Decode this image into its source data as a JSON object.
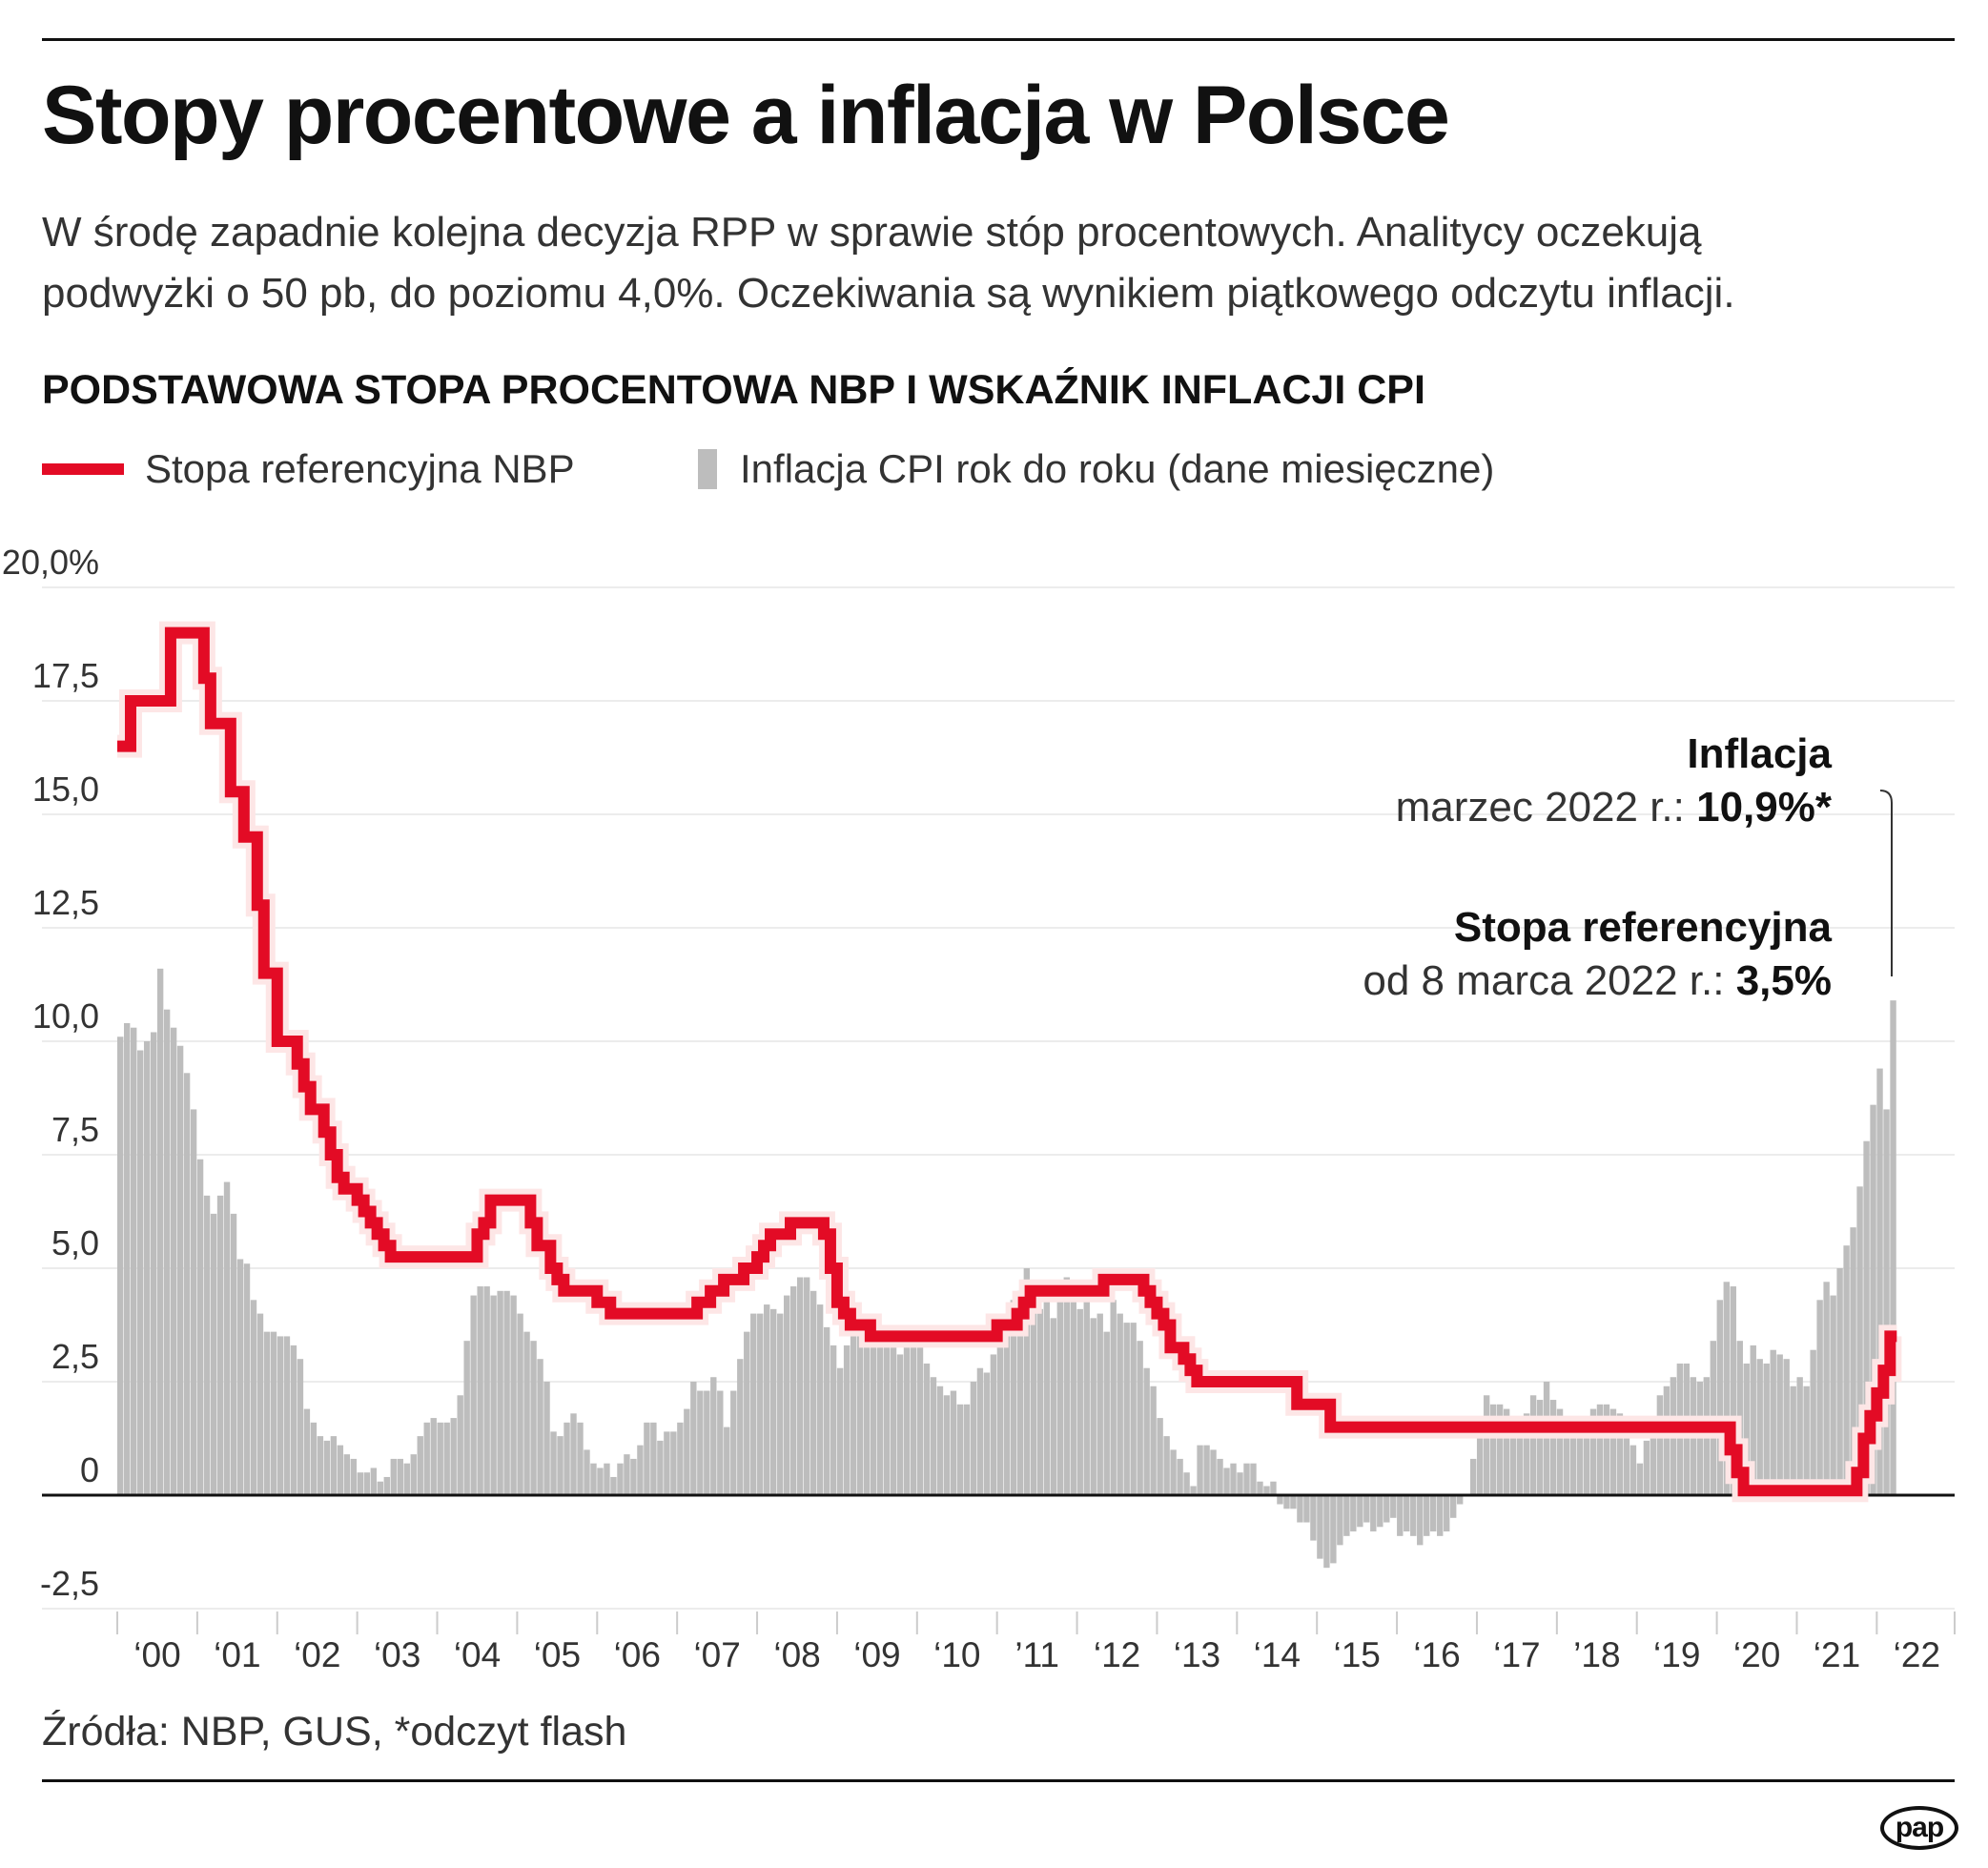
{
  "header": {
    "title": "Stopy procentowe a inflacja w Polsce",
    "subtitle_lines": [
      "W środę zapadnie kolejna decyzja RPP w sprawie stóp procentowych. Analitycy oczekują",
      "podwyżki o 50 pb, do poziomu 4,0%. Oczekiwania są wynikiem piątkowego odczytu inflacji."
    ],
    "chart_heading": "PODSTAWOWA STOPA PROCENTOWA NBP I WSKAŹNIK INFLACJI CPI"
  },
  "legend": {
    "rate": "Stopa referencyjna NBP",
    "cpi": "Inflacja CPI rok do roku (dane miesięczne)"
  },
  "annotations": {
    "inflation_title": "Inflacja",
    "inflation_text": "marzec 2022 r.: ",
    "inflation_value": "10,9%*",
    "rate_title": "Stopa referencyjna",
    "rate_text": "od 8 marca 2022 r.: ",
    "rate_value": "3,5%"
  },
  "footer": {
    "source": "Źródła: NBP, GUS, *odczyt flash",
    "logo": "pap"
  },
  "colors": {
    "rate": "#e30b25",
    "cpi": "#bdbdbd",
    "grid": "#ececec",
    "axis": "#111111"
  },
  "chart_data": {
    "type": "bar+line",
    "x_start": "2000-01",
    "x_end": "2022-03",
    "frequency": "monthly",
    "ylim": [
      -2.5,
      20
    ],
    "y_ticks": [
      -2.5,
      0,
      2.5,
      5,
      7.5,
      10,
      12.5,
      15,
      17.5,
      20
    ],
    "y_tick_labels": [
      "-2,5",
      "0",
      "2,5",
      "5,0",
      "7,5",
      "10,0",
      "12,5",
      "15,0",
      "17,5",
      "20,0%"
    ],
    "x_tick_labels": [
      "‘00",
      "‘01",
      "‘02",
      "‘03",
      "‘04",
      "‘05",
      "‘06",
      "‘07",
      "‘08",
      "‘09",
      "‘10",
      "’11",
      "‘12",
      "‘13",
      "‘14",
      "‘15",
      "‘16",
      "‘17",
      "’18",
      "‘19",
      "‘20",
      "‘21",
      "‘22"
    ],
    "grid": true,
    "series": [
      {
        "name": "Inflacja CPI rok do roku (dane miesięczne)",
        "type": "bar",
        "values": [
          10.1,
          10.4,
          10.3,
          9.8,
          10.0,
          10.2,
          11.6,
          10.7,
          10.3,
          9.9,
          9.3,
          8.5,
          7.4,
          6.6,
          6.2,
          6.6,
          6.9,
          6.2,
          5.2,
          5.1,
          4.3,
          4.0,
          3.6,
          3.6,
          3.5,
          3.5,
          3.3,
          3.0,
          1.9,
          1.6,
          1.3,
          1.2,
          1.3,
          1.1,
          0.9,
          0.8,
          0.5,
          0.5,
          0.6,
          0.3,
          0.4,
          0.8,
          0.8,
          0.7,
          0.9,
          1.3,
          1.6,
          1.7,
          1.6,
          1.6,
          1.7,
          2.2,
          3.4,
          4.4,
          4.6,
          4.6,
          4.4,
          4.5,
          4.5,
          4.4,
          4.0,
          3.6,
          3.4,
          3.0,
          2.5,
          1.4,
          1.3,
          1.6,
          1.8,
          1.6,
          1.0,
          0.7,
          0.6,
          0.7,
          0.4,
          0.7,
          0.9,
          0.8,
          1.1,
          1.6,
          1.6,
          1.2,
          1.4,
          1.4,
          1.6,
          1.9,
          2.5,
          2.3,
          2.3,
          2.6,
          2.3,
          1.5,
          2.3,
          3.0,
          3.6,
          4.0,
          4.0,
          4.2,
          4.1,
          4.0,
          4.4,
          4.6,
          4.8,
          4.8,
          4.5,
          4.2,
          3.7,
          3.3,
          2.8,
          3.3,
          3.6,
          4.0,
          3.6,
          3.5,
          3.6,
          3.7,
          3.4,
          3.1,
          3.3,
          3.5,
          3.5,
          2.9,
          2.6,
          2.4,
          2.2,
          2.3,
          2.0,
          2.0,
          2.5,
          2.8,
          2.7,
          3.1,
          3.6,
          3.6,
          4.3,
          4.5,
          5.0,
          4.2,
          4.1,
          4.3,
          3.9,
          4.3,
          4.8,
          4.6,
          4.1,
          4.3,
          3.9,
          4.0,
          3.6,
          4.3,
          4.0,
          3.8,
          3.8,
          3.4,
          2.8,
          2.4,
          1.7,
          1.3,
          1.0,
          0.8,
          0.5,
          0.2,
          1.1,
          1.1,
          1.0,
          0.8,
          0.6,
          0.7,
          0.5,
          0.7,
          0.7,
          0.3,
          0.2,
          0.3,
          -0.2,
          -0.3,
          -0.3,
          -0.6,
          -0.6,
          -1.0,
          -1.4,
          -1.6,
          -1.5,
          -1.1,
          -0.9,
          -0.8,
          -0.7,
          -0.6,
          -0.8,
          -0.7,
          -0.6,
          -0.5,
          -0.9,
          -0.8,
          -0.9,
          -1.1,
          -0.9,
          -0.8,
          -0.9,
          -0.8,
          -0.5,
          -0.2,
          0.0,
          0.8,
          1.7,
          2.2,
          2.0,
          2.0,
          1.9,
          1.5,
          1.7,
          1.8,
          2.2,
          2.1,
          2.5,
          2.1,
          1.9,
          1.4,
          1.3,
          1.6,
          1.7,
          1.9,
          2.0,
          2.0,
          1.9,
          1.8,
          1.3,
          1.1,
          0.7,
          1.2,
          1.7,
          2.2,
          2.4,
          2.6,
          2.9,
          2.9,
          2.6,
          2.5,
          2.6,
          3.4,
          4.3,
          4.7,
          4.6,
          3.4,
          2.9,
          3.3,
          3.0,
          2.9,
          3.2,
          3.1,
          3.0,
          2.4,
          2.6,
          2.4,
          3.2,
          4.3,
          4.7,
          4.4,
          5.0,
          5.5,
          5.9,
          6.8,
          7.8,
          8.6,
          9.4,
          8.5,
          10.9
        ]
      },
      {
        "name": "Stopa referencyjna NBP",
        "type": "step-line",
        "values": [
          16.5,
          16.5,
          17.5,
          17.5,
          17.5,
          17.5,
          17.5,
          17.5,
          19,
          19,
          19,
          19,
          19,
          18,
          17,
          17,
          17,
          15.5,
          15.5,
          14.5,
          14.5,
          13,
          11.5,
          11.5,
          10,
          10,
          10,
          9.5,
          9,
          8.5,
          8.5,
          8,
          7.5,
          7,
          6.75,
          6.75,
          6.5,
          6.25,
          6,
          5.75,
          5.5,
          5.25,
          5.25,
          5.25,
          5.25,
          5.25,
          5.25,
          5.25,
          5.25,
          5.25,
          5.25,
          5.25,
          5.25,
          5.25,
          5.75,
          6,
          6.5,
          6.5,
          6.5,
          6.5,
          6.5,
          6.5,
          6,
          5.5,
          5.5,
          5,
          4.75,
          4.5,
          4.5,
          4.5,
          4.5,
          4.5,
          4.25,
          4.25,
          4,
          4,
          4,
          4,
          4,
          4,
          4,
          4,
          4,
          4,
          4,
          4,
          4,
          4.25,
          4.25,
          4.5,
          4.5,
          4.75,
          4.75,
          4.75,
          5,
          5,
          5.25,
          5.5,
          5.75,
          5.75,
          5.75,
          6,
          6,
          6,
          6,
          6,
          5.75,
          5,
          4.25,
          4,
          3.75,
          3.75,
          3.75,
          3.5,
          3.5,
          3.5,
          3.5,
          3.5,
          3.5,
          3.5,
          3.5,
          3.5,
          3.5,
          3.5,
          3.5,
          3.5,
          3.5,
          3.5,
          3.5,
          3.5,
          3.5,
          3.5,
          3.75,
          3.75,
          3.75,
          4,
          4.25,
          4.5,
          4.5,
          4.5,
          4.5,
          4.5,
          4.5,
          4.5,
          4.5,
          4.5,
          4.5,
          4.5,
          4.75,
          4.75,
          4.75,
          4.75,
          4.75,
          4.75,
          4.5,
          4.25,
          4,
          3.75,
          3.25,
          3.25,
          3,
          2.75,
          2.5,
          2.5,
          2.5,
          2.5,
          2.5,
          2.5,
          2.5,
          2.5,
          2.5,
          2.5,
          2.5,
          2.5,
          2.5,
          2.5,
          2.5,
          2,
          2,
          2,
          2,
          2,
          1.5,
          1.5,
          1.5,
          1.5,
          1.5,
          1.5,
          1.5,
          1.5,
          1.5,
          1.5,
          1.5,
          1.5,
          1.5,
          1.5,
          1.5,
          1.5,
          1.5,
          1.5,
          1.5,
          1.5,
          1.5,
          1.5,
          1.5,
          1.5,
          1.5,
          1.5,
          1.5,
          1.5,
          1.5,
          1.5,
          1.5,
          1.5,
          1.5,
          1.5,
          1.5,
          1.5,
          1.5,
          1.5,
          1.5,
          1.5,
          1.5,
          1.5,
          1.5,
          1.5,
          1.5,
          1.5,
          1.5,
          1.5,
          1.5,
          1.5,
          1.5,
          1.5,
          1.5,
          1.5,
          1.5,
          1.5,
          1.5,
          1.5,
          1.5,
          1.5,
          1,
          0.5,
          0.1,
          0.1,
          0.1,
          0.1,
          0.1,
          0.1,
          0.1,
          0.1,
          0.1,
          0.1,
          0.1,
          0.1,
          0.1,
          0.1,
          0.1,
          0.1,
          0.1,
          0.5,
          1.25,
          1.75,
          2.25,
          2.75,
          3.5
        ]
      }
    ]
  }
}
